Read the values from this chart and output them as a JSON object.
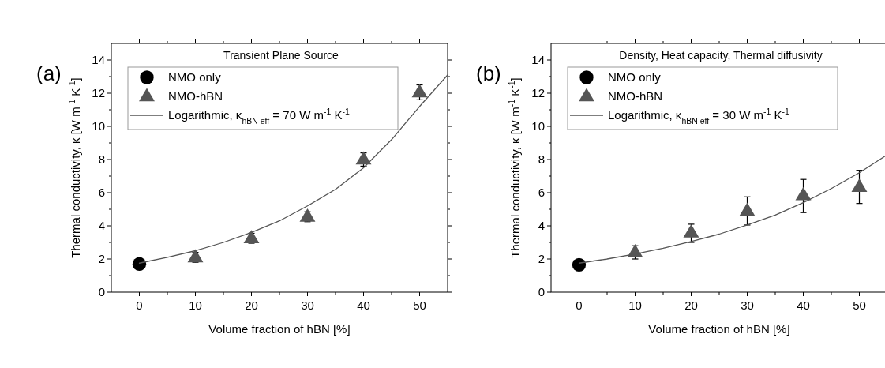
{
  "chart_data": [
    {
      "type": "scatter",
      "title": "Transient Plane Source",
      "xlabel": "Volume fraction of hBN [%]",
      "ylabel": "Thermal conductivity, κ [W m$^{-1}$ K$^{-1}$]",
      "annotations": [
        "(a)"
      ],
      "xlim": [
        -5,
        55
      ],
      "xticks": [
        0,
        10,
        20,
        30,
        40,
        50
      ],
      "ylim": [
        0,
        15
      ],
      "yticks": [
        0,
        2,
        4,
        6,
        8,
        10,
        12,
        14
      ],
      "grid": false,
      "legend": "top",
      "series": [
        {
          "name": "NMO only",
          "marker": "circle",
          "color": "#000000",
          "x": [
            0
          ],
          "values": [
            1.7
          ]
        },
        {
          "name": "NMO-hBN",
          "marker": "triangle",
          "color": "#555555",
          "x": [
            10,
            20,
            30,
            40,
            50
          ],
          "values": [
            2.1,
            3.25,
            4.55,
            8.0,
            12.05
          ],
          "errors": [
            0.3,
            0.3,
            0.3,
            0.4,
            0.45
          ]
        },
        {
          "name": "Logarithmic, κ$_{hBN eff}$ = 70 W m$^{-1}$ K$^{-1}$",
          "type": "line",
          "line_style": "solid",
          "color": "#555555",
          "x": [
            0,
            5,
            10,
            15,
            20,
            25,
            30,
            35,
            40,
            45,
            50,
            55
          ],
          "values": [
            1.75,
            2.1,
            2.5,
            3.0,
            3.6,
            4.3,
            5.2,
            6.2,
            7.5,
            9.2,
            11.2,
            13.1
          ]
        }
      ]
    },
    {
      "type": "scatter",
      "title": "Density, Heat capacity, Thermal diffusivity",
      "xlabel": "Volume fraction of hBN [%]",
      "ylabel": "Thermal conductivity, κ [W m$^{-1}$ K$^{-1}$]",
      "annotations": [
        "(b)"
      ],
      "xlim": [
        -5,
        55
      ],
      "xticks": [
        0,
        10,
        20,
        30,
        40,
        50
      ],
      "ylim": [
        0,
        15
      ],
      "yticks": [
        0,
        2,
        4,
        6,
        8,
        10,
        12,
        14
      ],
      "grid": false,
      "legend": "top",
      "series": [
        {
          "name": "NMO only",
          "marker": "circle",
          "color": "#000000",
          "x": [
            0
          ],
          "values": [
            1.65
          ]
        },
        {
          "name": "NMO-hBN",
          "marker": "triangle",
          "color": "#555555",
          "x": [
            10,
            20,
            30,
            40,
            50
          ],
          "values": [
            2.4,
            3.6,
            4.9,
            5.85,
            6.35
          ],
          "errors": [
            [
              2.0,
              2.8
            ],
            [
              3.0,
              4.1
            ],
            [
              4.05,
              5.75
            ],
            [
              4.8,
              6.8
            ],
            [
              5.35,
              7.35
            ]
          ]
        },
        {
          "name": "Logarithmic, κ$_{hBN eff}$ = 30 W m$^{-1}$ K$^{-1}$",
          "type": "line",
          "line_style": "solid",
          "color": "#555555",
          "x": [
            0,
            5,
            10,
            15,
            20,
            25,
            30,
            35,
            40,
            45,
            50,
            55
          ],
          "values": [
            1.75,
            2.0,
            2.3,
            2.65,
            3.05,
            3.5,
            4.05,
            4.65,
            5.4,
            6.25,
            7.2,
            8.3
          ]
        }
      ]
    }
  ]
}
